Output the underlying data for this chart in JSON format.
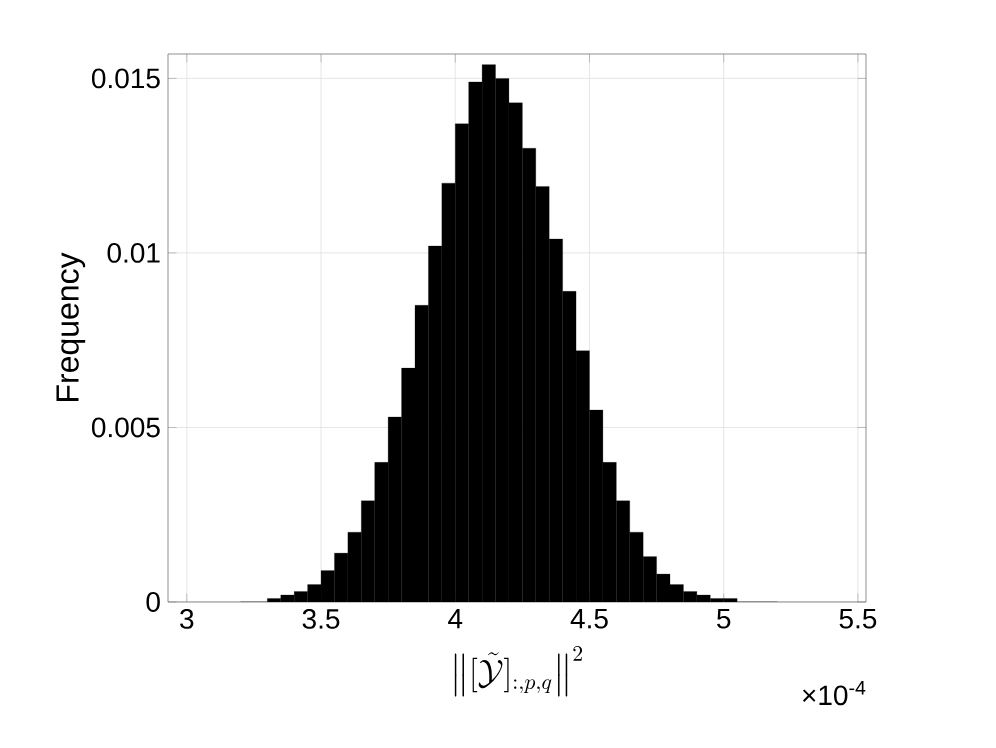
{
  "chart_data": {
    "type": "histogram",
    "xlabel": "\\left\\|[\\tilde{\\mathcal{Y}}]_{:,p,q}\\right\\|^2",
    "ylabel": "Frequency",
    "annotations": [
      "×10$^{-4}$"
    ],
    "bins": [
      3.2,
      3.25,
      3.3,
      3.35,
      3.4,
      3.45,
      3.5,
      3.55,
      3.6,
      3.65,
      3.7,
      3.75,
      3.8,
      3.85,
      3.9,
      3.95,
      4.0,
      4.05,
      4.1,
      4.15,
      4.2,
      4.25,
      4.3,
      4.35,
      4.4,
      4.45,
      4.5,
      4.55,
      4.6,
      4.65,
      4.7,
      4.75,
      4.8,
      4.85,
      4.9,
      4.95,
      5.0,
      5.05,
      5.1,
      5.15,
      5.2
    ],
    "values": [
      0,
      0,
      0.0001,
      0.0002,
      0.0003,
      0.0005,
      0.0009,
      0.0014,
      0.002,
      0.0029,
      0.004,
      0.0053,
      0.0067,
      0.0085,
      0.0102,
      0.012,
      0.0137,
      0.0149,
      0.0154,
      0.015,
      0.0143,
      0.013,
      0.0119,
      0.0104,
      0.0089,
      0.0072,
      0.0055,
      0.004,
      0.0029,
      0.002,
      0.0013,
      0.0008,
      0.0005,
      0.0003,
      0.0002,
      0.0001,
      0.0001,
      0,
      0,
      0
    ],
    "color": "#000000",
    "xlim": [
      2.93,
      5.53
    ],
    "ylim": [
      0,
      0.0157
    ],
    "xticks": [
      3,
      3.5,
      4,
      4.5,
      5,
      5.5
    ],
    "yticks": [
      0,
      0.005,
      0.01,
      0.015
    ],
    "grid": true
  }
}
